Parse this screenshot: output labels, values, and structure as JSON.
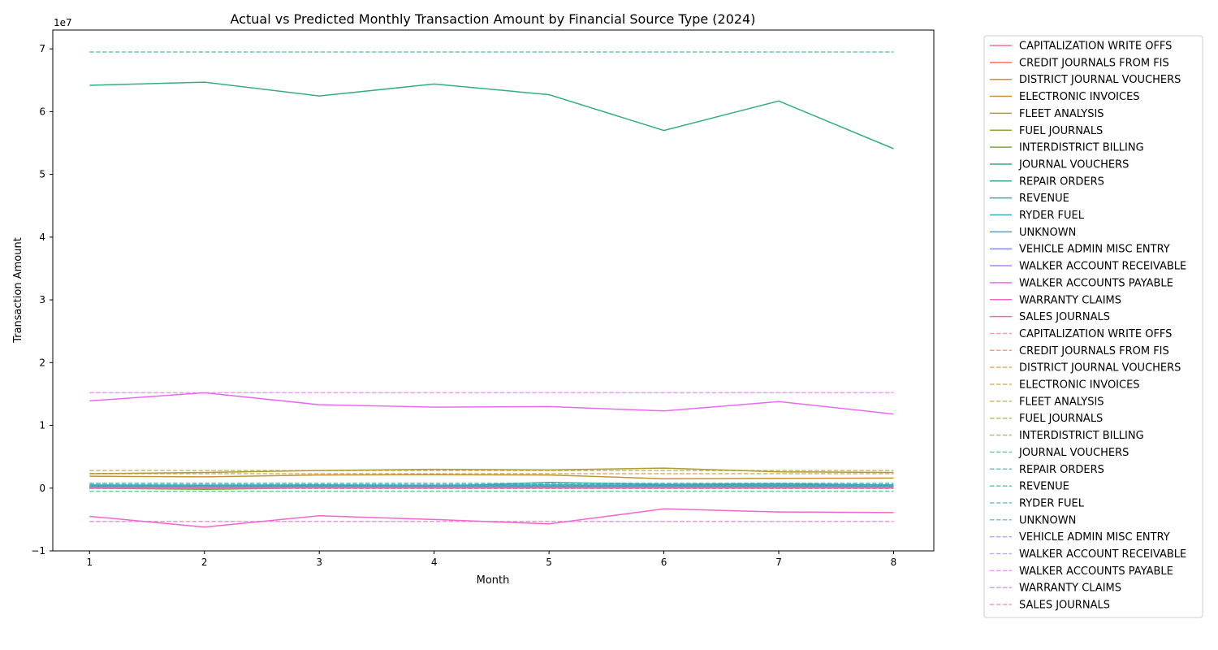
{
  "chart_data": {
    "type": "line",
    "title": "Actual vs Predicted Monthly Transaction Amount by Financial Source Type (2024)",
    "xlabel": "Month",
    "ylabel": "Transaction Amount",
    "y_scale_label": "1e7",
    "x_ticks": [
      1,
      2,
      3,
      4,
      5,
      6,
      7,
      8
    ],
    "y_ticks": [
      -1,
      0,
      1,
      2,
      3,
      4,
      5,
      6,
      7
    ],
    "xlim": [
      0.68,
      8.35
    ],
    "ylim": [
      -10000000,
      73000000
    ],
    "grid": false,
    "legend_placement": "outside-right",
    "x": [
      1,
      2,
      3,
      4,
      5,
      6,
      7,
      8
    ],
    "series": [
      {
        "name": "CAPITALIZATION WRITE OFFS",
        "style": "solid",
        "color": "#f77189",
        "values": [
          0,
          0,
          0,
          0,
          0,
          0,
          0,
          0
        ]
      },
      {
        "name": "CREDIT JOURNALS FROM FIS",
        "style": "solid",
        "color": "#f7754f",
        "values": [
          200000,
          300000,
          250000,
          250000,
          300000,
          400000,
          300000,
          250000
        ]
      },
      {
        "name": "DISTRICT JOURNAL VOUCHERS",
        "style": "solid",
        "color": "#dc8932",
        "values": [
          100000,
          100000,
          150000,
          100000,
          100000,
          200000,
          150000,
          100000
        ]
      },
      {
        "name": "ELECTRONIC INVOICES",
        "style": "solid",
        "color": "#c39532",
        "values": [
          1900000,
          1800000,
          2100000,
          2150000,
          2100000,
          1500000,
          1550000,
          1600000
        ]
      },
      {
        "name": "FLEET ANALYSIS",
        "style": "solid",
        "color": "#ae9d31",
        "values": [
          2300000,
          2500000,
          2800000,
          3000000,
          2900000,
          3200000,
          2600000,
          2500000
        ]
      },
      {
        "name": "FUEL JOURNALS",
        "style": "solid",
        "color": "#97a431",
        "values": [
          300000,
          250000,
          300000,
          300000,
          250000,
          300000,
          300000,
          250000
        ]
      },
      {
        "name": "INTERDISTRICT BILLING",
        "style": "solid",
        "color": "#77ab31",
        "values": [
          0,
          -200000,
          50000,
          0,
          0,
          0,
          0,
          0
        ]
      },
      {
        "name": "JOURNAL VOUCHERS",
        "style": "solid",
        "color": "#33b07a",
        "values": [
          64200000,
          64700000,
          62500000,
          64400000,
          62700000,
          57000000,
          61700000,
          54100000
        ]
      },
      {
        "name": "REPAIR ORDERS",
        "style": "solid",
        "color": "#35ac9a",
        "values": [
          200000,
          250000,
          200000,
          200000,
          250000,
          200000,
          200000,
          200000
        ]
      },
      {
        "name": "REVENUE",
        "style": "solid",
        "color": "#36ada4",
        "values": [
          500000,
          450000,
          500000,
          450000,
          500000,
          450000,
          500000,
          450000
        ]
      },
      {
        "name": "RYDER FUEL",
        "style": "solid",
        "color": "#38aabd",
        "values": [
          300000,
          300000,
          350000,
          300000,
          900000,
          600000,
          700000,
          500000
        ]
      },
      {
        "name": "UNKNOWN",
        "style": "solid",
        "color": "#3ba3ec",
        "values": [
          300000,
          350000,
          300000,
          350000,
          300000,
          350000,
          400000,
          300000
        ]
      },
      {
        "name": "VEHICLE ADMIN MISC ENTRY",
        "style": "solid",
        "color": "#7e91f4",
        "values": [
          100000,
          100000,
          100000,
          100000,
          100000,
          100000,
          100000,
          100000
        ]
      },
      {
        "name": "WALKER ACCOUNT RECEIVABLE",
        "style": "solid",
        "color": "#ad80f4",
        "values": [
          0,
          0,
          0,
          0,
          0,
          0,
          0,
          0
        ]
      },
      {
        "name": "WALKER ACCOUNTS PAYABLE",
        "style": "solid",
        "color": "#e86af3",
        "values": [
          13900000,
          15200000,
          13300000,
          12900000,
          13000000,
          12300000,
          13800000,
          11800000
        ]
      },
      {
        "name": "WARRANTY CLAIMS",
        "style": "solid",
        "color": "#f565cc",
        "values": [
          -4500000,
          -6200000,
          -4400000,
          -5000000,
          -5700000,
          -3300000,
          -3800000,
          -3900000
        ]
      },
      {
        "name": "SALES JOURNALS",
        "style": "solid",
        "color": "#f66ba8",
        "values": [
          0,
          0,
          0,
          0,
          0,
          0,
          0,
          0
        ]
      },
      {
        "name": "CAPITALIZATION WRITE OFFS",
        "style": "dashed",
        "color": "#f77189",
        "values": [
          0,
          0,
          0,
          0,
          0,
          0,
          0,
          0
        ]
      },
      {
        "name": "CREDIT JOURNALS FROM FIS",
        "style": "dashed",
        "color": "#f7754f",
        "values": [
          300000,
          300000,
          300000,
          300000,
          300000,
          300000,
          300000,
          300000
        ]
      },
      {
        "name": "DISTRICT JOURNAL VOUCHERS",
        "style": "dashed",
        "color": "#dc8932",
        "values": [
          150000,
          150000,
          150000,
          150000,
          150000,
          150000,
          150000,
          150000
        ]
      },
      {
        "name": "ELECTRONIC INVOICES",
        "style": "dashed",
        "color": "#c39532",
        "values": [
          2300000,
          2300000,
          2300000,
          2300000,
          2300000,
          2300000,
          2300000,
          2300000
        ]
      },
      {
        "name": "FLEET ANALYSIS",
        "style": "dashed",
        "color": "#ae9d31",
        "values": [
          2800000,
          2800000,
          2800000,
          2800000,
          2800000,
          2800000,
          2800000,
          2800000
        ]
      },
      {
        "name": "FUEL JOURNALS",
        "style": "dashed",
        "color": "#97a431",
        "values": [
          300000,
          300000,
          300000,
          300000,
          300000,
          300000,
          300000,
          300000
        ]
      },
      {
        "name": "INTERDISTRICT BILLING",
        "style": "dashed",
        "color": "#77ab31",
        "values": [
          -50000,
          -50000,
          -50000,
          -50000,
          -50000,
          -50000,
          -50000,
          -50000
        ]
      },
      {
        "name": "JOURNAL VOUCHERS",
        "style": "dashed",
        "color": "#33b07a",
        "values": [
          -500000,
          -500000,
          -500000,
          -500000,
          -500000,
          -500000,
          -500000,
          -500000
        ]
      },
      {
        "name": "REPAIR ORDERS",
        "style": "dashed",
        "color": "#35ac9a",
        "values": [
          69500000,
          69500000,
          69500000,
          69500000,
          69500000,
          69500000,
          69500000,
          69500000
        ]
      },
      {
        "name": "REVENUE",
        "style": "dashed",
        "color": "#36ada4",
        "values": [
          800000,
          800000,
          800000,
          800000,
          800000,
          800000,
          800000,
          800000
        ]
      },
      {
        "name": "RYDER FUEL",
        "style": "dashed",
        "color": "#38aabd",
        "values": [
          600000,
          600000,
          600000,
          600000,
          600000,
          600000,
          600000,
          600000
        ]
      },
      {
        "name": "UNKNOWN",
        "style": "dashed",
        "color": "#3ba3ec",
        "values": [
          350000,
          350000,
          350000,
          350000,
          350000,
          350000,
          350000,
          350000
        ]
      },
      {
        "name": "VEHICLE ADMIN MISC ENTRY",
        "style": "dashed",
        "color": "#7e91f4",
        "values": [
          100000,
          100000,
          100000,
          100000,
          100000,
          100000,
          100000,
          100000
        ]
      },
      {
        "name": "WALKER ACCOUNT RECEIVABLE",
        "style": "dashed",
        "color": "#ad80f4",
        "values": [
          0,
          0,
          0,
          0,
          0,
          0,
          0,
          0
        ]
      },
      {
        "name": "WALKER ACCOUNTS PAYABLE",
        "style": "dashed",
        "color": "#e86af3",
        "values": [
          15200000,
          15200000,
          15200000,
          15200000,
          15200000,
          15200000,
          15200000,
          15200000
        ]
      },
      {
        "name": "WARRANTY CLAIMS",
        "style": "dashed",
        "color": "#f565cc",
        "values": [
          -5300000,
          -5300000,
          -5300000,
          -5300000,
          -5300000,
          -5300000,
          -5300000,
          -5300000
        ]
      },
      {
        "name": "SALES JOURNALS",
        "style": "dashed",
        "color": "#f66ba8",
        "values": [
          0,
          0,
          0,
          0,
          0,
          0,
          0,
          0
        ]
      }
    ]
  }
}
